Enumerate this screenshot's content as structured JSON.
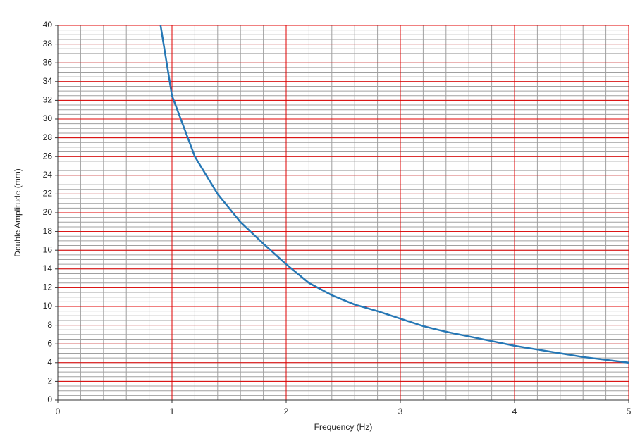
{
  "chart_data": {
    "type": "line",
    "x_label": "Frequency (Hz)",
    "y_label": "Double Amplitude (mm)",
    "x": [
      0.9,
      1.0,
      1.2,
      1.4,
      1.6,
      1.8,
      2.0,
      2.2,
      2.4,
      2.6,
      2.8,
      3.0,
      3.2,
      3.4,
      3.6,
      3.8,
      4.0,
      4.2,
      4.4,
      4.6,
      4.8,
      5.0
    ],
    "series": [
      {
        "color": "#2577b5",
        "values": [
          40,
          32.5,
          26,
          22,
          19,
          16.7,
          14.5,
          12.5,
          11.2,
          10.2,
          9.5,
          8.7,
          7.9,
          7.3,
          6.8,
          6.3,
          5.8,
          5.4,
          5.0,
          4.6,
          4.3,
          4.0
        ]
      }
    ],
    "xlim": [
      0,
      5
    ],
    "xticks": [
      0,
      1,
      2,
      3,
      4,
      5
    ],
    "ylim": [
      0,
      40
    ],
    "yticks": [
      0,
      2,
      4,
      6,
      8,
      10,
      12,
      14,
      16,
      18,
      20,
      22,
      24,
      26,
      28,
      30,
      32,
      34,
      36,
      38,
      40
    ],
    "grid": true,
    "grid_color": "#e00000",
    "minor_grid_color": "#a0a0a0",
    "xminor": 0.2,
    "yminor": 0.5
  }
}
